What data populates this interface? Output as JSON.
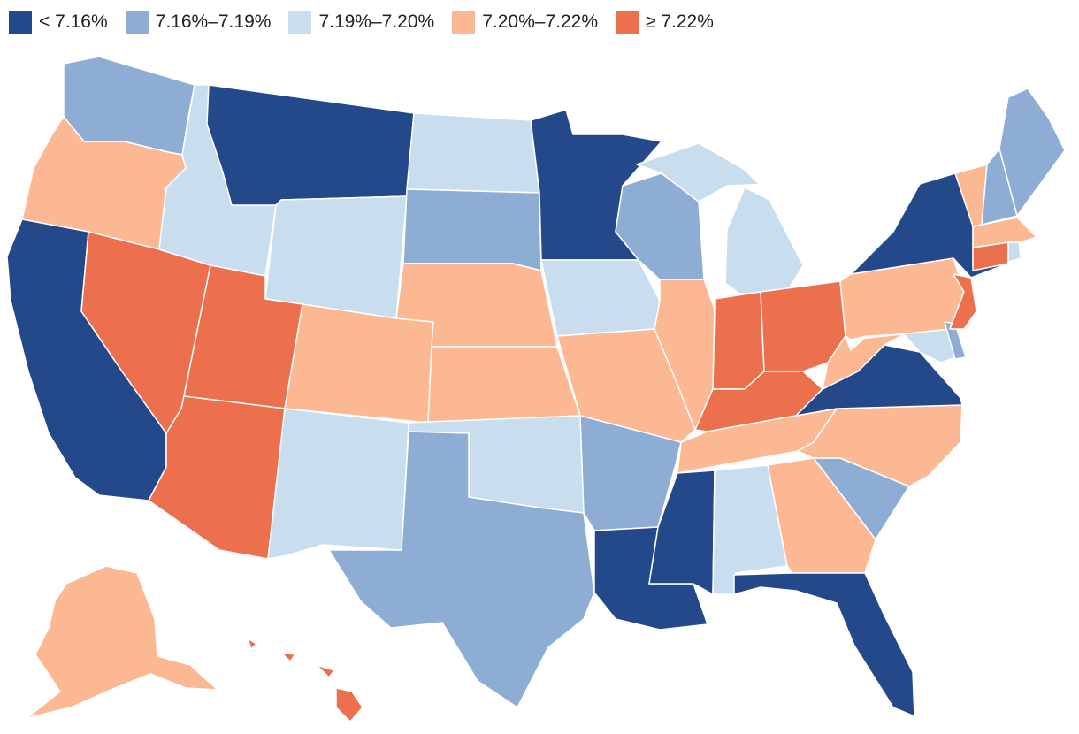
{
  "legend": {
    "items": [
      {
        "label": "< 7.16%",
        "color": "#23498a",
        "category": "lt_716"
      },
      {
        "label": "7.16%–7.19%",
        "color": "#8dadd5",
        "category": "716_719"
      },
      {
        "label": "7.19%–7.20%",
        "color": "#c8dded",
        "category": "719_720"
      },
      {
        "label": "7.20%–7.22%",
        "color": "#fcb892",
        "category": "720_722"
      },
      {
        "label": "≥ 7.22%",
        "color": "#ec704d",
        "category": "gte_722"
      }
    ]
  },
  "states": [
    {
      "name": "Washington",
      "abbr": "WA",
      "category": "716_719"
    },
    {
      "name": "Oregon",
      "abbr": "OR",
      "category": "720_722"
    },
    {
      "name": "California",
      "abbr": "CA",
      "category": "lt_716"
    },
    {
      "name": "Nevada",
      "abbr": "NV",
      "category": "gte_722"
    },
    {
      "name": "Idaho",
      "abbr": "ID",
      "category": "719_720"
    },
    {
      "name": "Montana",
      "abbr": "MT",
      "category": "lt_716"
    },
    {
      "name": "Wyoming",
      "abbr": "WY",
      "category": "719_720"
    },
    {
      "name": "Utah",
      "abbr": "UT",
      "category": "gte_722"
    },
    {
      "name": "Arizona",
      "abbr": "AZ",
      "category": "gte_722"
    },
    {
      "name": "Colorado",
      "abbr": "CO",
      "category": "720_722"
    },
    {
      "name": "New Mexico",
      "abbr": "NM",
      "category": "719_720"
    },
    {
      "name": "North Dakota",
      "abbr": "ND",
      "category": "719_720"
    },
    {
      "name": "South Dakota",
      "abbr": "SD",
      "category": "716_719"
    },
    {
      "name": "Nebraska",
      "abbr": "NE",
      "category": "720_722"
    },
    {
      "name": "Kansas",
      "abbr": "KS",
      "category": "720_722"
    },
    {
      "name": "Oklahoma",
      "abbr": "OK",
      "category": "719_720"
    },
    {
      "name": "Texas",
      "abbr": "TX",
      "category": "716_719"
    },
    {
      "name": "Minnesota",
      "abbr": "MN",
      "category": "lt_716"
    },
    {
      "name": "Iowa",
      "abbr": "IA",
      "category": "719_720"
    },
    {
      "name": "Missouri",
      "abbr": "MO",
      "category": "720_722"
    },
    {
      "name": "Arkansas",
      "abbr": "AR",
      "category": "716_719"
    },
    {
      "name": "Louisiana",
      "abbr": "LA",
      "category": "lt_716"
    },
    {
      "name": "Wisconsin",
      "abbr": "WI",
      "category": "716_719"
    },
    {
      "name": "Illinois",
      "abbr": "IL",
      "category": "720_722"
    },
    {
      "name": "Michigan",
      "abbr": "MI",
      "category": "719_720"
    },
    {
      "name": "Indiana",
      "abbr": "IN",
      "category": "gte_722"
    },
    {
      "name": "Ohio",
      "abbr": "OH",
      "category": "gte_722"
    },
    {
      "name": "Kentucky",
      "abbr": "KY",
      "category": "gte_722"
    },
    {
      "name": "Tennessee",
      "abbr": "TN",
      "category": "720_722"
    },
    {
      "name": "Mississippi",
      "abbr": "MS",
      "category": "lt_716"
    },
    {
      "name": "Alabama",
      "abbr": "AL",
      "category": "719_720"
    },
    {
      "name": "Georgia",
      "abbr": "GA",
      "category": "720_722"
    },
    {
      "name": "Florida",
      "abbr": "FL",
      "category": "lt_716"
    },
    {
      "name": "South Carolina",
      "abbr": "SC",
      "category": "716_719"
    },
    {
      "name": "North Carolina",
      "abbr": "NC",
      "category": "720_722"
    },
    {
      "name": "Virginia",
      "abbr": "VA",
      "category": "lt_716"
    },
    {
      "name": "West Virginia",
      "abbr": "WV",
      "category": "720_722"
    },
    {
      "name": "Maryland",
      "abbr": "MD",
      "category": "719_720"
    },
    {
      "name": "Delaware",
      "abbr": "DE",
      "category": "716_719"
    },
    {
      "name": "Pennsylvania",
      "abbr": "PA",
      "category": "720_722"
    },
    {
      "name": "New Jersey",
      "abbr": "NJ",
      "category": "gte_722"
    },
    {
      "name": "New York",
      "abbr": "NY",
      "category": "lt_716"
    },
    {
      "name": "Connecticut",
      "abbr": "CT",
      "category": "gte_722"
    },
    {
      "name": "Rhode Island",
      "abbr": "RI",
      "category": "719_720"
    },
    {
      "name": "Massachusetts",
      "abbr": "MA",
      "category": "720_722"
    },
    {
      "name": "Vermont",
      "abbr": "VT",
      "category": "720_722"
    },
    {
      "name": "New Hampshire",
      "abbr": "NH",
      "category": "716_719"
    },
    {
      "name": "Maine",
      "abbr": "ME",
      "category": "716_719"
    },
    {
      "name": "Alaska",
      "abbr": "AK",
      "category": "720_722"
    },
    {
      "name": "Hawaii",
      "abbr": "HI",
      "category": "gte_722"
    }
  ]
}
